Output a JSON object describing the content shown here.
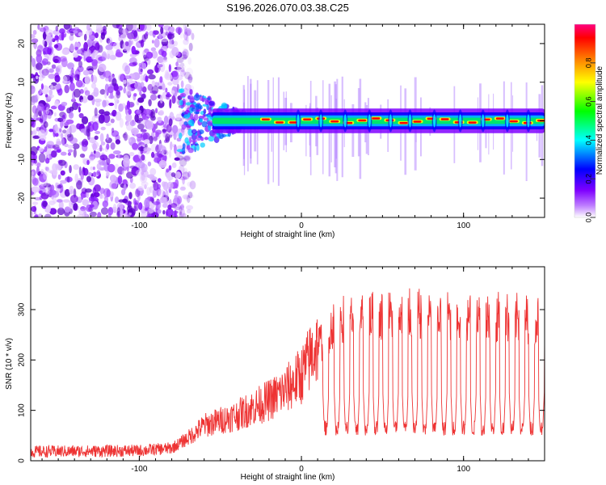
{
  "title": "S196.2026.070.03.38.C25",
  "colorbar": {
    "label": "Normalized spectral amplitude",
    "ticks": [
      "0.0",
      "0.2",
      "0.4",
      "0.6",
      "0.8"
    ],
    "tick_values": [
      0.0,
      0.2,
      0.4,
      0.6,
      0.8
    ],
    "range": [
      0,
      1
    ],
    "colors": [
      "#ffffff",
      "#7f00ff",
      "#0000ff",
      "#00ffff",
      "#00ff00",
      "#ffff00",
      "#ff7f00",
      "#ff0000",
      "#ff0080"
    ]
  },
  "chart_data": [
    {
      "type": "heatmap",
      "name": "spectrogram",
      "xlabel": "Height of straight line (km)",
      "ylabel": "Frequency (Hz)",
      "xlim": [
        -167,
        150
      ],
      "ylim": [
        -25,
        25
      ],
      "x_ticks": [
        -100,
        0,
        100
      ],
      "x_tick_labels": [
        "-100",
        "0",
        "100"
      ],
      "y_ticks": [
        -20,
        -10,
        0,
        10,
        20
      ],
      "y_tick_labels": [
        "-20",
        "-10",
        "0",
        "10",
        "20"
      ],
      "description_of_pattern": {
        "broadband_noise_region": [
          -167,
          -75
        ],
        "onset_of_signal": -75,
        "signal_center_freq": 0,
        "signal_band_halfwidth": 1.5
      },
      "peak_x": [
        -2,
        12,
        27,
        42,
        55,
        67,
        82,
        98,
        112,
        127,
        140
      ],
      "line_color": "#ff0000"
    },
    {
      "type": "line",
      "name": "snr",
      "xlabel": "Height of straight line (km)",
      "ylabel": "SNR (10 * v/v)",
      "xlim": [
        -167,
        150
      ],
      "ylim": [
        0,
        385
      ],
      "x_ticks": [
        -100,
        0,
        100
      ],
      "x_tick_labels": [
        "-100",
        "0",
        "100"
      ],
      "y_ticks": [
        0,
        100,
        200,
        300
      ],
      "y_tick_labels": [
        "0",
        "100",
        "200",
        "300"
      ],
      "series": [
        {
          "name": "SNR",
          "color": "#ee3333",
          "knots_x": [
            -167,
            -100,
            -80,
            -70,
            -60,
            -40,
            -20,
            -10,
            0,
            8,
            15,
            22,
            40,
            60,
            80,
            100,
            120,
            150
          ],
          "knots_y": [
            18,
            20,
            25,
            45,
            70,
            90,
            120,
            140,
            170,
            220,
            250,
            280,
            285,
            290,
            290,
            285,
            285,
            280
          ],
          "dropout_x": [
            15,
            22,
            28,
            34,
            40,
            46,
            52,
            58,
            64,
            70,
            76,
            82,
            88,
            94,
            100,
            106,
            112,
            118,
            124,
            130,
            136,
            142,
            148
          ],
          "dropout_level": 65
        }
      ]
    }
  ]
}
